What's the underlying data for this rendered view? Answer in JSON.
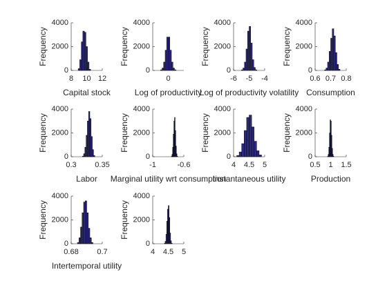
{
  "chart_data": [
    {
      "type": "histogram",
      "xlabel": "Capital stock",
      "ylabel": "Frequency",
      "color": "#2e2a7a",
      "bins": [
        8.9,
        9.1,
        9.3,
        9.5,
        9.7,
        9.9,
        10.1,
        10.3,
        10.5
      ],
      "values": [
        150,
        900,
        2400,
        3300,
        3200,
        2000,
        700,
        100
      ],
      "xlim": [
        8,
        12
      ],
      "xticks": [
        8,
        10,
        12
      ],
      "ylim": [
        0,
        4000
      ],
      "yticks": [
        0,
        2000,
        4000
      ]
    },
    {
      "type": "histogram",
      "xlabel": "Log of productivity",
      "ylabel": "Frequency",
      "color": "#2e2a7a",
      "bins": [
        -0.25,
        -0.2,
        -0.15,
        -0.1,
        -0.05,
        0,
        0.05,
        0.1,
        0.15,
        0.2,
        0.25
      ],
      "values": [
        50,
        200,
        700,
        1700,
        2800,
        2800,
        1700,
        700,
        200,
        50
      ],
      "xlim": [
        -0.5,
        0.5
      ],
      "xticks": [
        0
      ],
      "ylim": [
        0,
        4000
      ],
      "yticks": [
        0,
        2000,
        4000
      ]
    },
    {
      "type": "histogram",
      "xlabel": "Log of productivity volatility",
      "ylabel": "Frequency",
      "color": "#2e2a7a",
      "bins": [
        -5.5,
        -5.4,
        -5.3,
        -5.2,
        -5.1,
        -5,
        -4.9,
        -4.8,
        -4.7,
        -4.6,
        -4.5
      ],
      "values": [
        50,
        200,
        700,
        1800,
        3300,
        3700,
        2300,
        900,
        250,
        50
      ],
      "xlim": [
        -6,
        -4
      ],
      "xticks": [
        -6,
        -5,
        -4
      ],
      "ylim": [
        0,
        4000
      ],
      "yticks": [
        0,
        2000,
        4000
      ]
    },
    {
      "type": "histogram",
      "xlabel": "Consumption",
      "ylabel": "Frequency",
      "color": "#2e2a7a",
      "bins": [
        0.66,
        0.67,
        0.68,
        0.69,
        0.7,
        0.71,
        0.72,
        0.73,
        0.74,
        0.75,
        0.76
      ],
      "values": [
        50,
        200,
        700,
        1600,
        2700,
        3500,
        2900,
        1500,
        500,
        100
      ],
      "xlim": [
        0.6,
        0.8
      ],
      "xticks": [
        0.6,
        0.7,
        0.8
      ],
      "ylim": [
        0,
        4000
      ],
      "yticks": [
        0,
        2000,
        4000
      ]
    },
    {
      "type": "histogram",
      "xlabel": "Labor",
      "ylabel": "Frequency",
      "color": "#2e2a7a",
      "bins": [
        0.318,
        0.32,
        0.322,
        0.324,
        0.326,
        0.328,
        0.33,
        0.332,
        0.334,
        0.336,
        0.338
      ],
      "values": [
        50,
        250,
        800,
        1800,
        3000,
        3800,
        3200,
        1700,
        600,
        100
      ],
      "xlim": [
        0.3,
        0.35
      ],
      "xticks": [
        0.3,
        0.35
      ],
      "ylim": [
        0,
        4000
      ],
      "yticks": [
        0,
        2000,
        4000
      ]
    },
    {
      "type": "histogram",
      "xlabel": "Marginal utility wrt consumption",
      "ylabel": "Frequency",
      "color": "#2e2a7a",
      "bins": [
        -0.76,
        -0.752,
        -0.744,
        -0.736,
        -0.728,
        -0.72,
        -0.712,
        -0.704,
        -0.696,
        -0.688,
        -0.68
      ],
      "values": [
        50,
        200,
        800,
        1900,
        3000,
        3300,
        2200,
        900,
        250,
        50
      ],
      "xlim": [
        -1,
        -0.6
      ],
      "xticks": [
        -1,
        -0.6
      ],
      "ylim": [
        0,
        4000
      ],
      "yticks": [
        0,
        2000,
        4000
      ]
    },
    {
      "type": "histogram",
      "xlabel": "Instantaneous utility",
      "ylabel": "Frequency",
      "color": "#2e2a7a",
      "bins": [
        4.1,
        4.18,
        4.26,
        4.34,
        4.42,
        4.5,
        4.58,
        4.66,
        4.74,
        4.82,
        4.9
      ],
      "values": [
        100,
        400,
        1100,
        2200,
        3300,
        3500,
        2500,
        1300,
        500,
        150
      ],
      "xlim": [
        4,
        5
      ],
      "xticks": [
        4,
        4.5,
        5
      ],
      "ylim": [
        0,
        4000
      ],
      "yticks": [
        0,
        2000,
        4000
      ]
    },
    {
      "type": "histogram",
      "xlabel": "Production",
      "ylabel": "Frequency",
      "color": "#2e2a7a",
      "bins": [
        0.9,
        0.92,
        0.94,
        0.96,
        0.98,
        1,
        1.02,
        1.04,
        1.06,
        1.08,
        1.1
      ],
      "values": [
        50,
        200,
        800,
        2000,
        3100,
        3000,
        1800,
        700,
        200,
        50
      ],
      "xlim": [
        0.5,
        1.5
      ],
      "xticks": [
        0.5,
        1,
        1.5
      ],
      "ylim": [
        0,
        4000
      ],
      "yticks": [
        0,
        2000,
        4000
      ]
    },
    {
      "type": "histogram",
      "xlabel": "Intertemporal utility",
      "ylabel": "Frequency",
      "color": "#2e2a7a",
      "bins": [
        0.684,
        0.685,
        0.686,
        0.687,
        0.688,
        0.689,
        0.69,
        0.691,
        0.692,
        0.693,
        0.694
      ],
      "values": [
        100,
        500,
        1400,
        2600,
        3500,
        3600,
        2600,
        1300,
        500,
        100
      ],
      "xlim": [
        0.68,
        0.7
      ],
      "xticks": [
        0.68,
        0.7
      ],
      "ylim": [
        0,
        4000
      ],
      "yticks": [
        0,
        2000,
        4000
      ]
    },
    {
      "type": "histogram",
      "ylabel": "Frequency",
      "color": "#2e2a7a",
      "bins": [
        4.375,
        4.4,
        4.425,
        4.45,
        4.475,
        4.5,
        4.525,
        4.55,
        4.575,
        4.6,
        4.625
      ],
      "values": [
        50,
        200,
        800,
        1900,
        2900,
        3200,
        2200,
        900,
        250,
        50
      ],
      "xlim": [
        4,
        5
      ],
      "xticks": [
        4,
        4.5,
        5
      ],
      "ylim": [
        0,
        4000
      ],
      "yticks": [
        0,
        2000,
        4000
      ]
    }
  ]
}
